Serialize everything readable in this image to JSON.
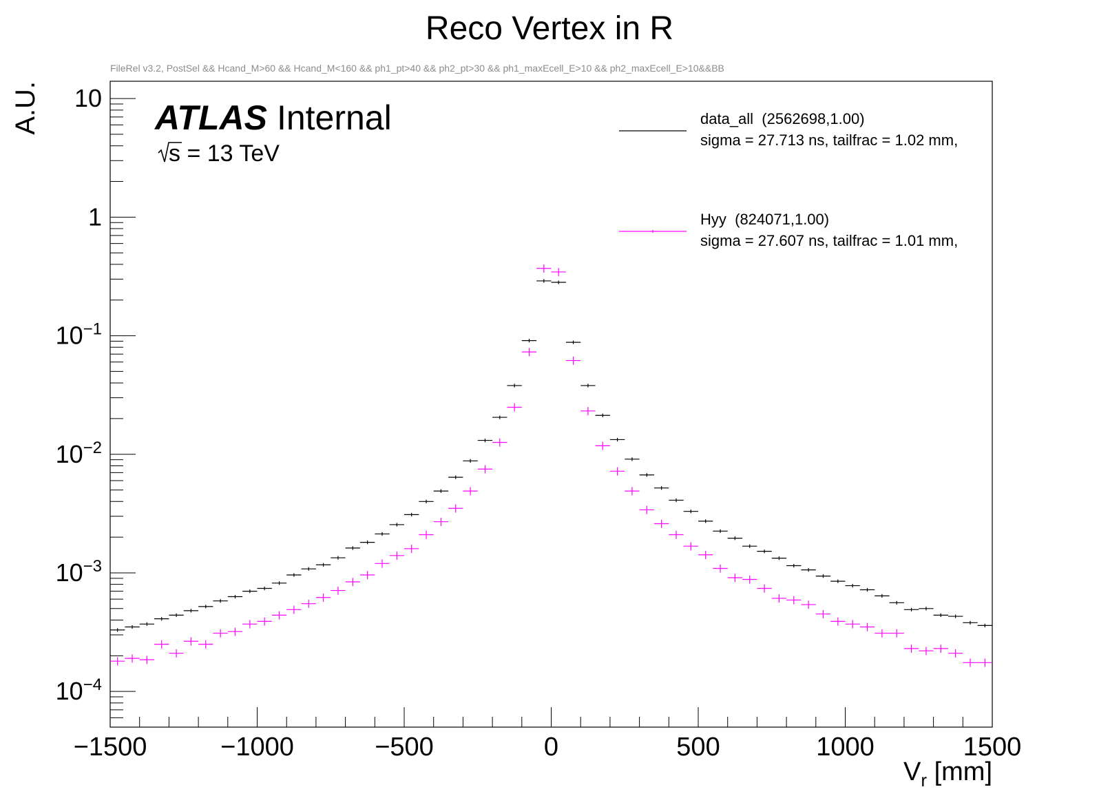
{
  "chart_data": {
    "type": "scatter",
    "title": "Reco Vertex in R",
    "subtitle": "FileRel v3.2, PostSel && Hcand_M>60 && Hcand_M<160 && ph1_pt>40 && ph2_pt>30 && ph1_maxEcell_E>10 && ph2_maxEcell_E>10&&BB",
    "xlabel": "V",
    "xlabel_sub": "r",
    "xlabel_unit": " [mm]",
    "ylabel": "A.U.",
    "xlim": [
      -1500,
      1500
    ],
    "ylim": [
      5e-05,
      14
    ],
    "yscale": "log",
    "grid": false,
    "legend_position": "top-right",
    "x_ticks": [
      {
        "value": -1500,
        "label": "−1500"
      },
      {
        "value": -1000,
        "label": "−1000"
      },
      {
        "value": -500,
        "label": "−500"
      },
      {
        "value": 0,
        "label": "0"
      },
      {
        "value": 500,
        "label": "500"
      },
      {
        "value": 1000,
        "label": "1000"
      },
      {
        "value": 1500,
        "label": "1500"
      }
    ],
    "y_ticks": [
      {
        "value": 10,
        "label": "10",
        "exp": ""
      },
      {
        "value": 1,
        "label": "1",
        "exp": ""
      },
      {
        "value": 0.1,
        "label": "10",
        "exp": "−1"
      },
      {
        "value": 0.01,
        "label": "10",
        "exp": "−2"
      },
      {
        "value": 0.001,
        "label": "10",
        "exp": "−3"
      },
      {
        "value": 0.0001,
        "label": "10",
        "exp": "−4"
      }
    ],
    "annotations": {
      "atlas": "ATLAS",
      "internal": "Internal",
      "energy": "s = 13 TeV"
    },
    "bin_width": 50,
    "x": [
      -1475,
      -1425,
      -1375,
      -1325,
      -1275,
      -1225,
      -1175,
      -1125,
      -1075,
      -1025,
      -975,
      -925,
      -875,
      -825,
      -775,
      -725,
      -675,
      -625,
      -575,
      -525,
      -475,
      -425,
      -375,
      -325,
      -275,
      -225,
      -175,
      -125,
      -75,
      -25,
      25,
      75,
      125,
      175,
      225,
      275,
      325,
      375,
      425,
      475,
      525,
      575,
      625,
      675,
      725,
      775,
      825,
      875,
      925,
      975,
      1025,
      1075,
      1125,
      1175,
      1225,
      1275,
      1325,
      1375,
      1425,
      1475
    ],
    "series": [
      {
        "name": "data_all  (2562698,1.00)",
        "legend_line2": "sigma = 27.713 ns, tailfrac = 1.02 mm,",
        "color": "#000000",
        "values": [
          0.00033,
          0.00035,
          0.00037,
          0.00041,
          0.00044,
          0.00048,
          0.00052,
          0.00058,
          0.00063,
          0.0007,
          0.00074,
          0.00082,
          0.00096,
          0.00108,
          0.00117,
          0.00134,
          0.00162,
          0.00181,
          0.00213,
          0.00255,
          0.0031,
          0.004,
          0.0049,
          0.0064,
          0.0088,
          0.0131,
          0.0205,
          0.038,
          0.091,
          0.29,
          0.282,
          0.088,
          0.038,
          0.0213,
          0.0133,
          0.0091,
          0.0067,
          0.0052,
          0.0041,
          0.0033,
          0.00273,
          0.00225,
          0.00196,
          0.00168,
          0.00152,
          0.00133,
          0.00115,
          0.00106,
          0.00094,
          0.00085,
          0.00078,
          0.00072,
          0.00064,
          0.00056,
          0.00049,
          0.0005,
          0.00044,
          0.00043,
          0.00038,
          0.00036
        ]
      },
      {
        "name": "Hyy  (824071,1.00)",
        "legend_line2": "sigma = 27.607 ns, tailfrac = 1.01 mm,",
        "color": "#ff00ff",
        "values": [
          0.00018,
          0.00019,
          0.000185,
          0.00025,
          0.00021,
          0.000265,
          0.00025,
          0.00031,
          0.00032,
          0.00037,
          0.00039,
          0.00044,
          0.00049,
          0.00055,
          0.00062,
          0.00071,
          0.00084,
          0.00096,
          0.0012,
          0.0014,
          0.0016,
          0.0021,
          0.0027,
          0.0035,
          0.0049,
          0.0075,
          0.0126,
          0.0249,
          0.073,
          0.37,
          0.345,
          0.0618,
          0.0232,
          0.0118,
          0.0072,
          0.0049,
          0.0034,
          0.0026,
          0.0021,
          0.00168,
          0.00142,
          0.00109,
          0.00091,
          0.00088,
          0.00074,
          0.00061,
          0.00059,
          0.00054,
          0.00045,
          0.00039,
          0.00037,
          0.00035,
          0.00031,
          0.00031,
          0.00023,
          0.00022,
          0.00023,
          0.00021,
          0.000175,
          0.000175
        ]
      }
    ]
  }
}
